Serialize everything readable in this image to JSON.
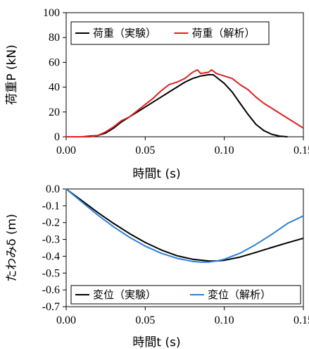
{
  "chart_data": [
    {
      "type": "line",
      "xlabel": "時間t (s)",
      "ylabel": "荷重P (kN)",
      "xlim": [
        0,
        0.15
      ],
      "ylim": [
        0,
        100
      ],
      "x_ticks": [
        "0.00",
        "0.05",
        "0.10",
        "0.15"
      ],
      "y_ticks": [
        "0",
        "20",
        "40",
        "60",
        "80",
        "100"
      ],
      "legend_position": "top",
      "grid": false,
      "series": [
        {
          "name": "荷重（実験）",
          "color": "#000000",
          "x": [
            0.0,
            0.01,
            0.02,
            0.025,
            0.03,
            0.035,
            0.04,
            0.045,
            0.05,
            0.055,
            0.06,
            0.065,
            0.07,
            0.075,
            0.08,
            0.085,
            0.09,
            0.093,
            0.095,
            0.1,
            0.105,
            0.11,
            0.115,
            0.12,
            0.125,
            0.13,
            0.135,
            0.14
          ],
          "y": [
            0,
            0,
            1,
            3,
            7,
            12,
            16,
            20,
            24,
            28,
            32,
            36,
            40,
            44,
            47,
            49,
            50,
            50,
            48,
            43,
            36,
            27,
            18,
            10,
            5,
            2,
            0.5,
            0
          ]
        },
        {
          "name": "荷重（解析）",
          "color": "#e02020",
          "x": [
            0.0,
            0.015,
            0.02,
            0.025,
            0.03,
            0.035,
            0.04,
            0.045,
            0.05,
            0.055,
            0.06,
            0.065,
            0.07,
            0.075,
            0.08,
            0.083,
            0.085,
            0.09,
            0.092,
            0.095,
            0.1,
            0.105,
            0.11,
            0.115,
            0.12,
            0.125,
            0.13,
            0.135,
            0.14,
            0.145,
            0.15
          ],
          "y": [
            0,
            0,
            1,
            4,
            8,
            13,
            16,
            21,
            26,
            31,
            37,
            42,
            44,
            47,
            52,
            54,
            51,
            52,
            54,
            51,
            49,
            47,
            42,
            38,
            32,
            27,
            23,
            19,
            15,
            11,
            7
          ]
        }
      ]
    },
    {
      "type": "line",
      "xlabel": "時間t (s)",
      "ylabel": "たわみδ (m)",
      "xlim": [
        0,
        0.15
      ],
      "ylim": [
        -0.7,
        0.0
      ],
      "x_ticks": [
        "0.00",
        "0.05",
        "0.10",
        "0.15"
      ],
      "y_ticks": [
        "0.0",
        "-0.1",
        "-0.2",
        "-0.3",
        "-0.4",
        "-0.5",
        "-0.6",
        "-0.7"
      ],
      "legend_position": "bottom",
      "grid": false,
      "series": [
        {
          "name": "変位（実験）",
          "color": "#000000",
          "x": [
            0.0,
            0.01,
            0.02,
            0.03,
            0.04,
            0.05,
            0.06,
            0.07,
            0.08,
            0.09,
            0.095,
            0.1,
            0.11,
            0.12,
            0.13,
            0.14,
            0.15
          ],
          "y": [
            0,
            -0.07,
            -0.14,
            -0.205,
            -0.265,
            -0.318,
            -0.362,
            -0.397,
            -0.418,
            -0.428,
            -0.428,
            -0.424,
            -0.405,
            -0.377,
            -0.348,
            -0.32,
            -0.293
          ]
        },
        {
          "name": "変位（解析）",
          "color": "#2d7fd8",
          "x": [
            0.0,
            0.01,
            0.02,
            0.03,
            0.04,
            0.05,
            0.06,
            0.07,
            0.08,
            0.085,
            0.09,
            0.095,
            0.1,
            0.11,
            0.12,
            0.13,
            0.14,
            0.15
          ],
          "y": [
            0,
            -0.078,
            -0.155,
            -0.225,
            -0.287,
            -0.34,
            -0.382,
            -0.412,
            -0.431,
            -0.435,
            -0.435,
            -0.429,
            -0.418,
            -0.382,
            -0.33,
            -0.27,
            -0.205,
            -0.16
          ]
        }
      ]
    }
  ]
}
